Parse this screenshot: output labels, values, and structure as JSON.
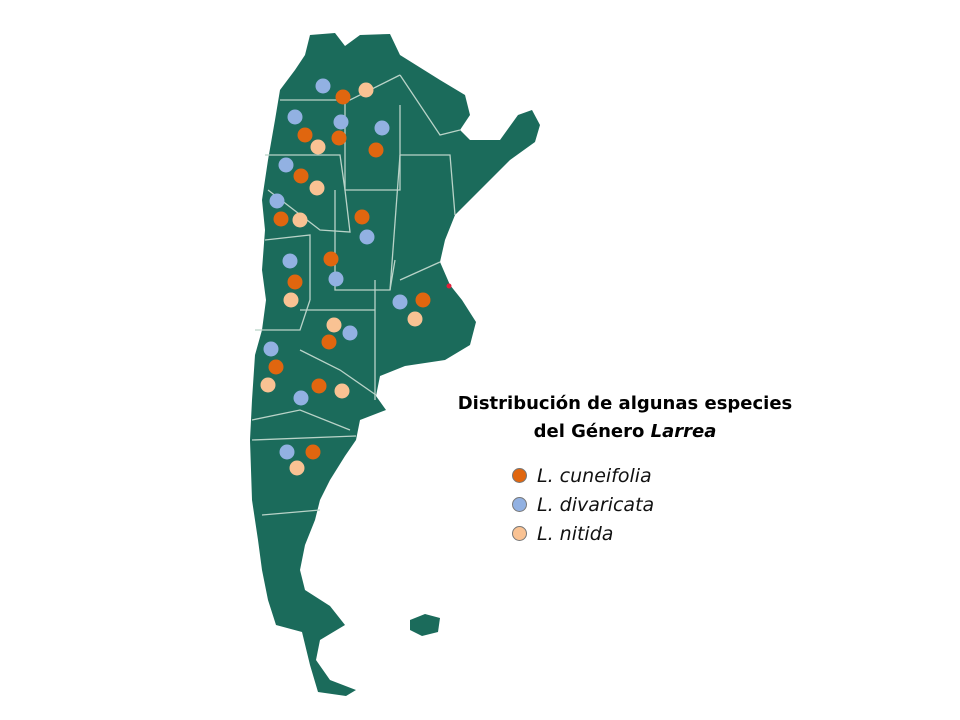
{
  "title": {
    "line1": "Distribución de algunas especies",
    "line2_prefix": "del Género ",
    "line2_italic": "Larrea"
  },
  "legend": [
    {
      "label": "L. cuneifolia",
      "color": "#e0660f"
    },
    {
      "label": "L. divaricata",
      "color": "#92b1e2"
    },
    {
      "label": "L. nitida",
      "color": "#f9c293"
    }
  ],
  "colors": {
    "land": "#1b6b5b",
    "border": "#b9d3c8",
    "marker_red": "#e0203a"
  }
}
